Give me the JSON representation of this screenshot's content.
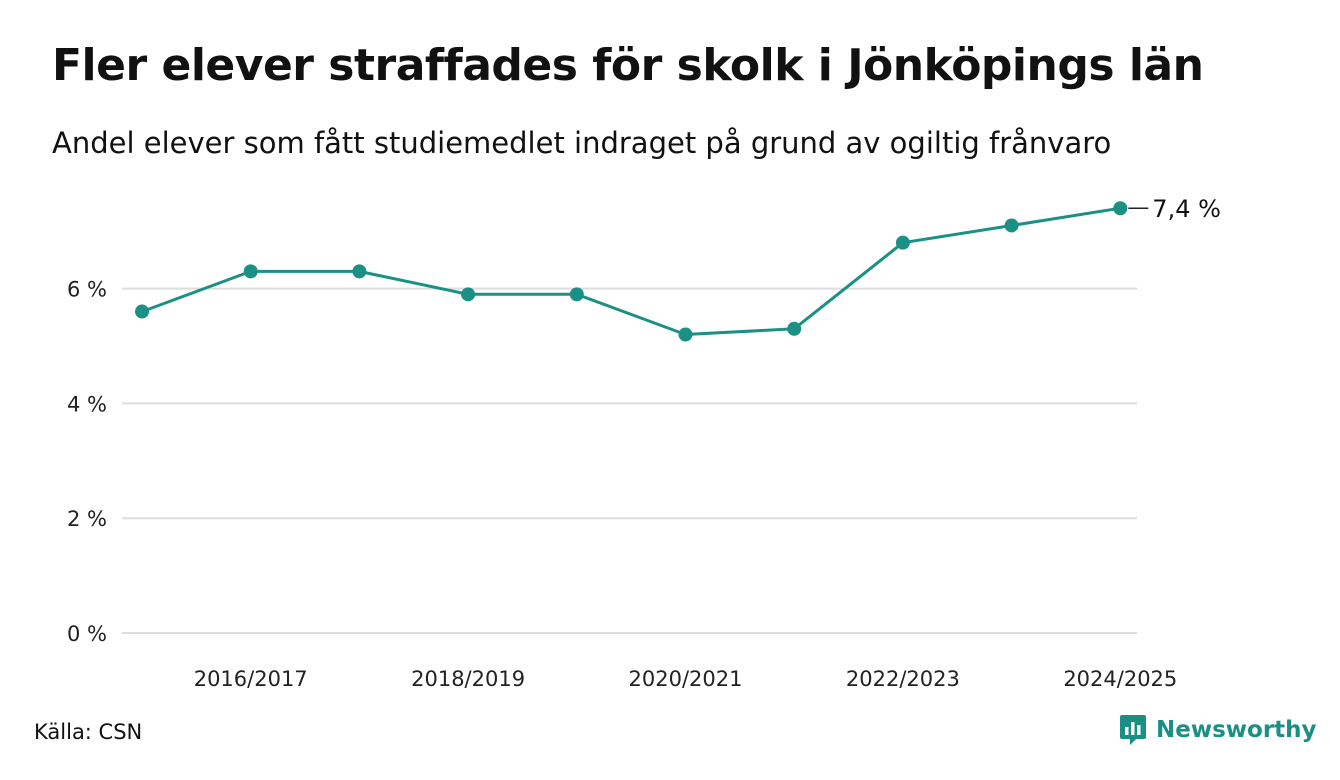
{
  "header": {
    "title": "Fler elever straffades för skolk i Jönköpings län",
    "subtitle": "Andel elever som fått studiemedlet indraget på grund av ogiltig frånvaro"
  },
  "footer": {
    "source": "Källa: CSN",
    "brand": "Newsworthy"
  },
  "colors": {
    "line": "#1b9185",
    "grid": "#dddddd",
    "brand": "#1b8f84"
  },
  "chart_data": {
    "type": "line",
    "categories": [
      "2015/2016",
      "2016/2017",
      "2017/2018",
      "2018/2019",
      "2019/2020",
      "2020/2021",
      "2021/2022",
      "2022/2023",
      "2023/2024",
      "2024/2025"
    ],
    "x_tick_labels": [
      "2016/2017",
      "2018/2019",
      "2020/2021",
      "2022/2023",
      "2024/2025"
    ],
    "values": [
      5.6,
      6.3,
      6.3,
      5.9,
      5.9,
      5.2,
      5.3,
      6.8,
      7.1,
      7.4
    ],
    "y_ticks": [
      0,
      2,
      4,
      6
    ],
    "y_tick_labels": [
      "0 %",
      "2 %",
      "4 %",
      "6 %"
    ],
    "ylim": [
      0,
      7.4
    ],
    "end_label": "7,4 %",
    "grid": "horizontal",
    "legend": "none"
  }
}
